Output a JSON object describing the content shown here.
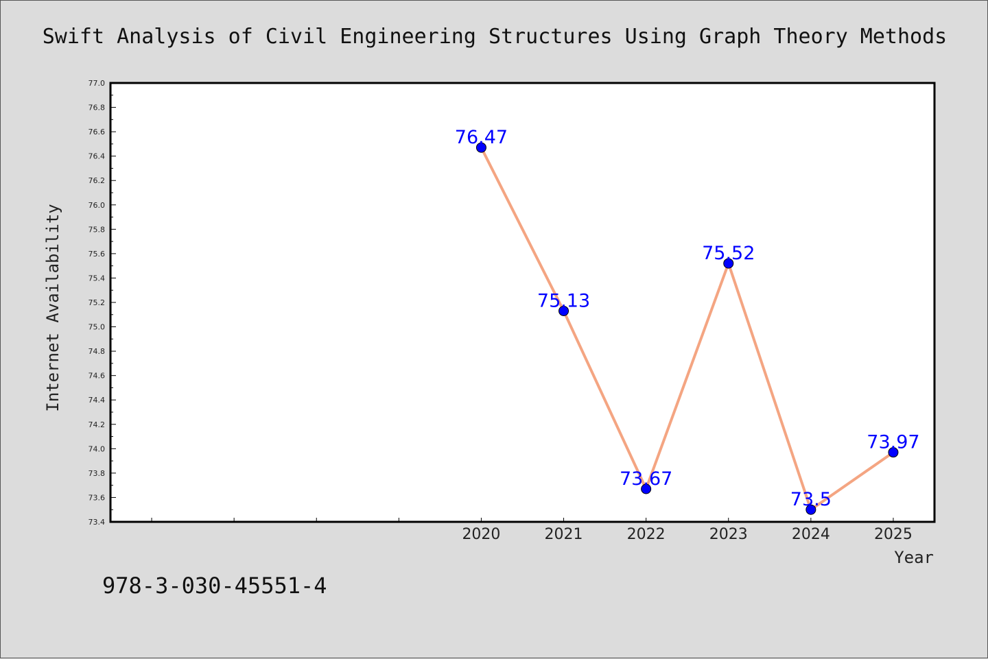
{
  "title": "Swift Analysis of Civil Engineering Structures Using Graph Theory Methods",
  "isbn": "978-3-030-45551-4",
  "chart_data": {
    "type": "line",
    "title": "Swift Analysis of Civil Engineering Structures Using Graph Theory Methods",
    "xlabel": "Year",
    "ylabel": "Internet Availability",
    "x": [
      2020,
      2021,
      2022,
      2023,
      2024,
      2025
    ],
    "series": [
      {
        "values": [
          76.47,
          75.13,
          73.67,
          75.52,
          73.5,
          73.97
        ]
      }
    ],
    "data_labels": [
      "76.47",
      "75.13",
      "73.67",
      "75.52",
      "73.5",
      "73.97"
    ],
    "xlim": [
      2015.5,
      2025.5
    ],
    "ylim": [
      73.4,
      77.0
    ],
    "yticks": [
      "73.4",
      "73.6",
      "73.8",
      "74.0",
      "74.2",
      "74.4",
      "74.6",
      "74.8",
      "75.0",
      "75.2",
      "75.4",
      "75.6",
      "75.8",
      "76.0",
      "76.2",
      "76.4",
      "76.6",
      "76.8",
      "77.0"
    ],
    "xticks": [
      "2020",
      "2021",
      "2022",
      "2023",
      "2024",
      "2025"
    ],
    "grid": false,
    "legend": "none",
    "line_color": "#f4a582",
    "marker_color": "#0000ff",
    "label_color": "#0000ff",
    "background": "#dcdcdc",
    "plot_background": "#ffffff"
  }
}
